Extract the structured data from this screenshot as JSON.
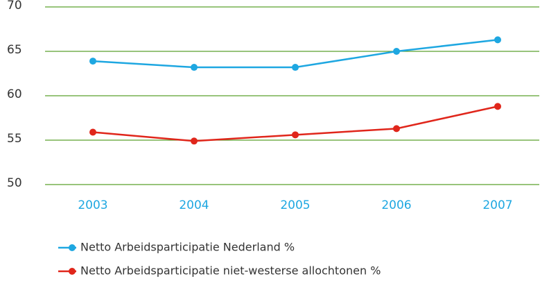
{
  "chart_data": {
    "type": "line",
    "categories": [
      "2003",
      "2004",
      "2005",
      "2006",
      "2007"
    ],
    "series": [
      {
        "name": "Netto Arbeidsparticipatie Nederland %",
        "color": "#1ea7e1",
        "values": [
          63.9,
          63.2,
          63.2,
          65.0,
          66.3
        ]
      },
      {
        "name": "Netto Arbeidsparticipatie niet-westerse allochtonen %",
        "color": "#e0261b",
        "values": [
          55.9,
          54.9,
          55.6,
          56.3,
          58.8
        ]
      }
    ],
    "ylim": [
      50,
      70
    ],
    "yticks": [
      50,
      55,
      60,
      65,
      70
    ],
    "grid": true,
    "grid_color": "#5aa02c",
    "category_color": "#1ea7e1"
  }
}
